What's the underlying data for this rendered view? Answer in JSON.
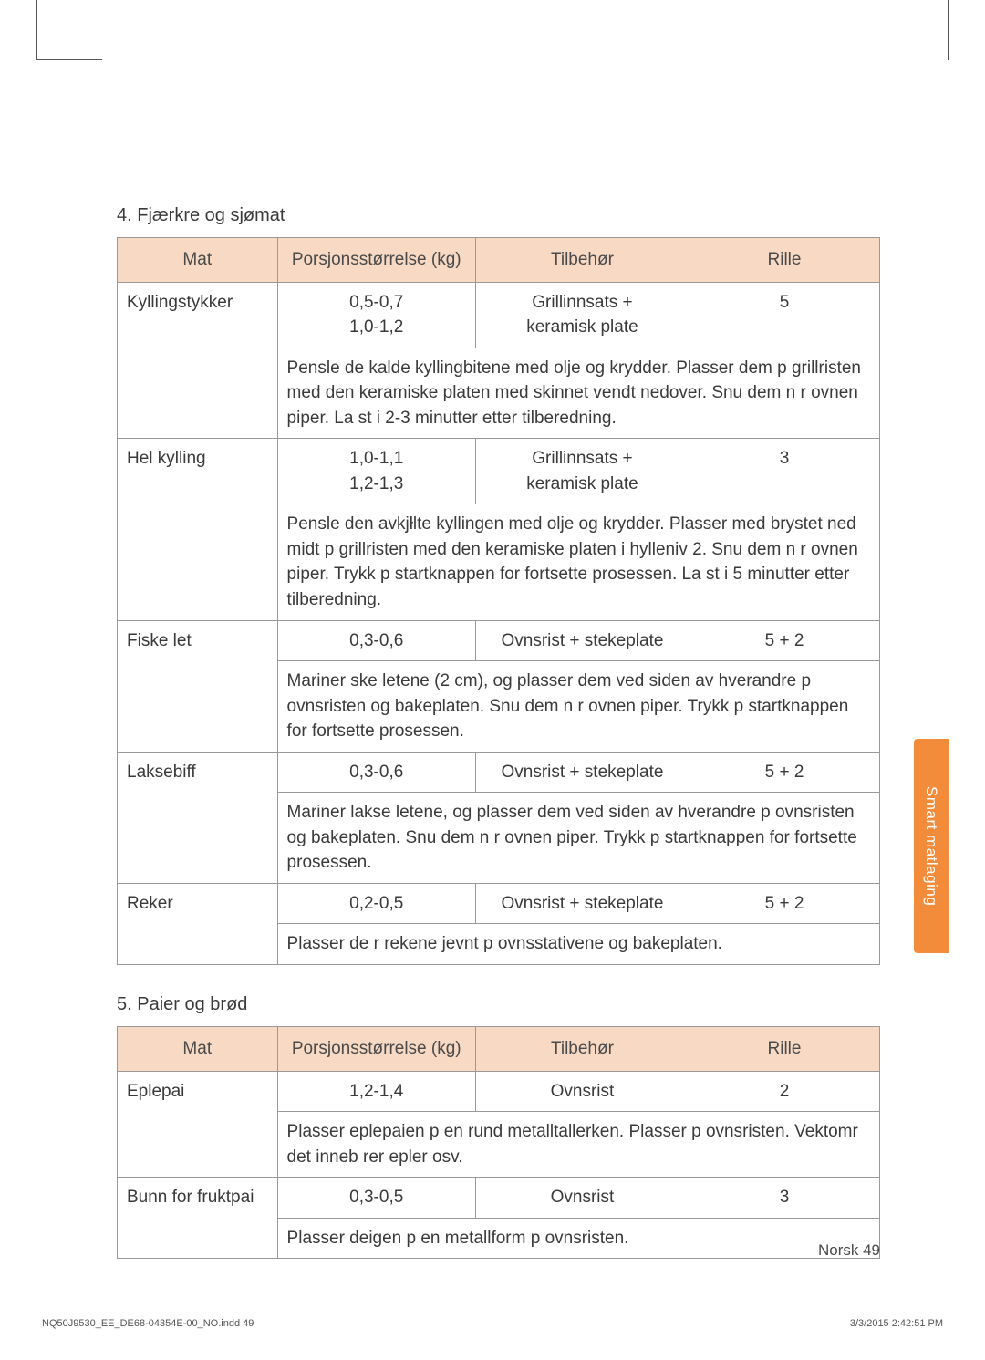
{
  "side_tab": "Smart matlaging",
  "page_label": "Norsk  49",
  "footer_left": "NQ50J9530_EE_DE68-04354E-00_NO.indd   49",
  "footer_right": "3/3/2015   2:42:51 PM",
  "headers": {
    "food": "Mat",
    "portion": "Porsjonsstørrelse (kg)",
    "accessory": "Tilbehør",
    "level": "Rille"
  },
  "section4": {
    "title": "4. Fjærkre og sjømat",
    "rows": [
      {
        "food": "Kyllingstykker",
        "portion1": "0,5-0,7",
        "portion2": "1,0-1,2",
        "accessory1": "Grillinnsats +",
        "accessory2": "keramisk plate",
        "level": "5",
        "instructions": "Pensle de kalde kyllingbitene med olje og krydder. Plasser dem p grillristen med den keramiske platen med skinnet vendt nedover. Snu dem n r ovnen piper. La st  i 2-3 minutter etter tilberedning."
      },
      {
        "food": "Hel kylling",
        "portion1": "1,0-1,1",
        "portion2": "1,2-1,3",
        "accessory1": "Grillinnsats +",
        "accessory2": "keramisk plate",
        "level": "3",
        "instructions": "Pensle den avkjłlte kyllingen med olje og krydder. Plasser med brystet ned midt p  grillristen med den keramiske platen i hylleniv 2. Snu dem n r ovnen piper. Trykk p  startknappen for  fortsette prosessen. La st  i 5 minutter etter tilberedning."
      },
      {
        "food": "Fiske let",
        "portion1": "0,3-0,6",
        "accessory1": "Ovnsrist + stekeplate",
        "level": "5 + 2",
        "instructions": "Mariner  ske letene (2 cm), og plasser dem ved siden av hverandre p  ovnsristen og bakeplaten. Snu dem n r ovnen piper. Trykk p startknappen for  fortsette prosessen."
      },
      {
        "food": "Laksebiff",
        "portion1": "0,3-0,6",
        "accessory1": "Ovnsrist + stekeplate",
        "level": "5 + 2",
        "instructions": "Mariner lakse letene, og plasser dem ved siden av hverandre p  ovnsristen og bakeplaten. Snu dem n r ovnen piper. Trykk p startknappen for  fortsette prosessen."
      },
      {
        "food": "Reker",
        "portion1": "0,2-0,5",
        "accessory1": "Ovnsrist + stekeplate",
        "level": "5 + 2",
        "instructions": "Plasser de r  rekene jevnt p  ovnsstativene og bakeplaten."
      }
    ]
  },
  "section5": {
    "title": "5. Paier og brød",
    "rows": [
      {
        "food": "Eplepai",
        "portion1": "1,2-1,4",
        "accessory1": "Ovnsrist",
        "level": "2",
        "instructions": "Plasser eplepaien p  en rund metalltallerken. Plasser p  ovnsristen. Vektomr det inneb rer epler osv."
      },
      {
        "food": "Bunn for fruktpai",
        "portion1": "0,3-0,5",
        "accessory1": "Ovnsrist",
        "level": "3",
        "instructions": "Plasser deigen p  en metallform p  ovnsristen."
      }
    ]
  }
}
